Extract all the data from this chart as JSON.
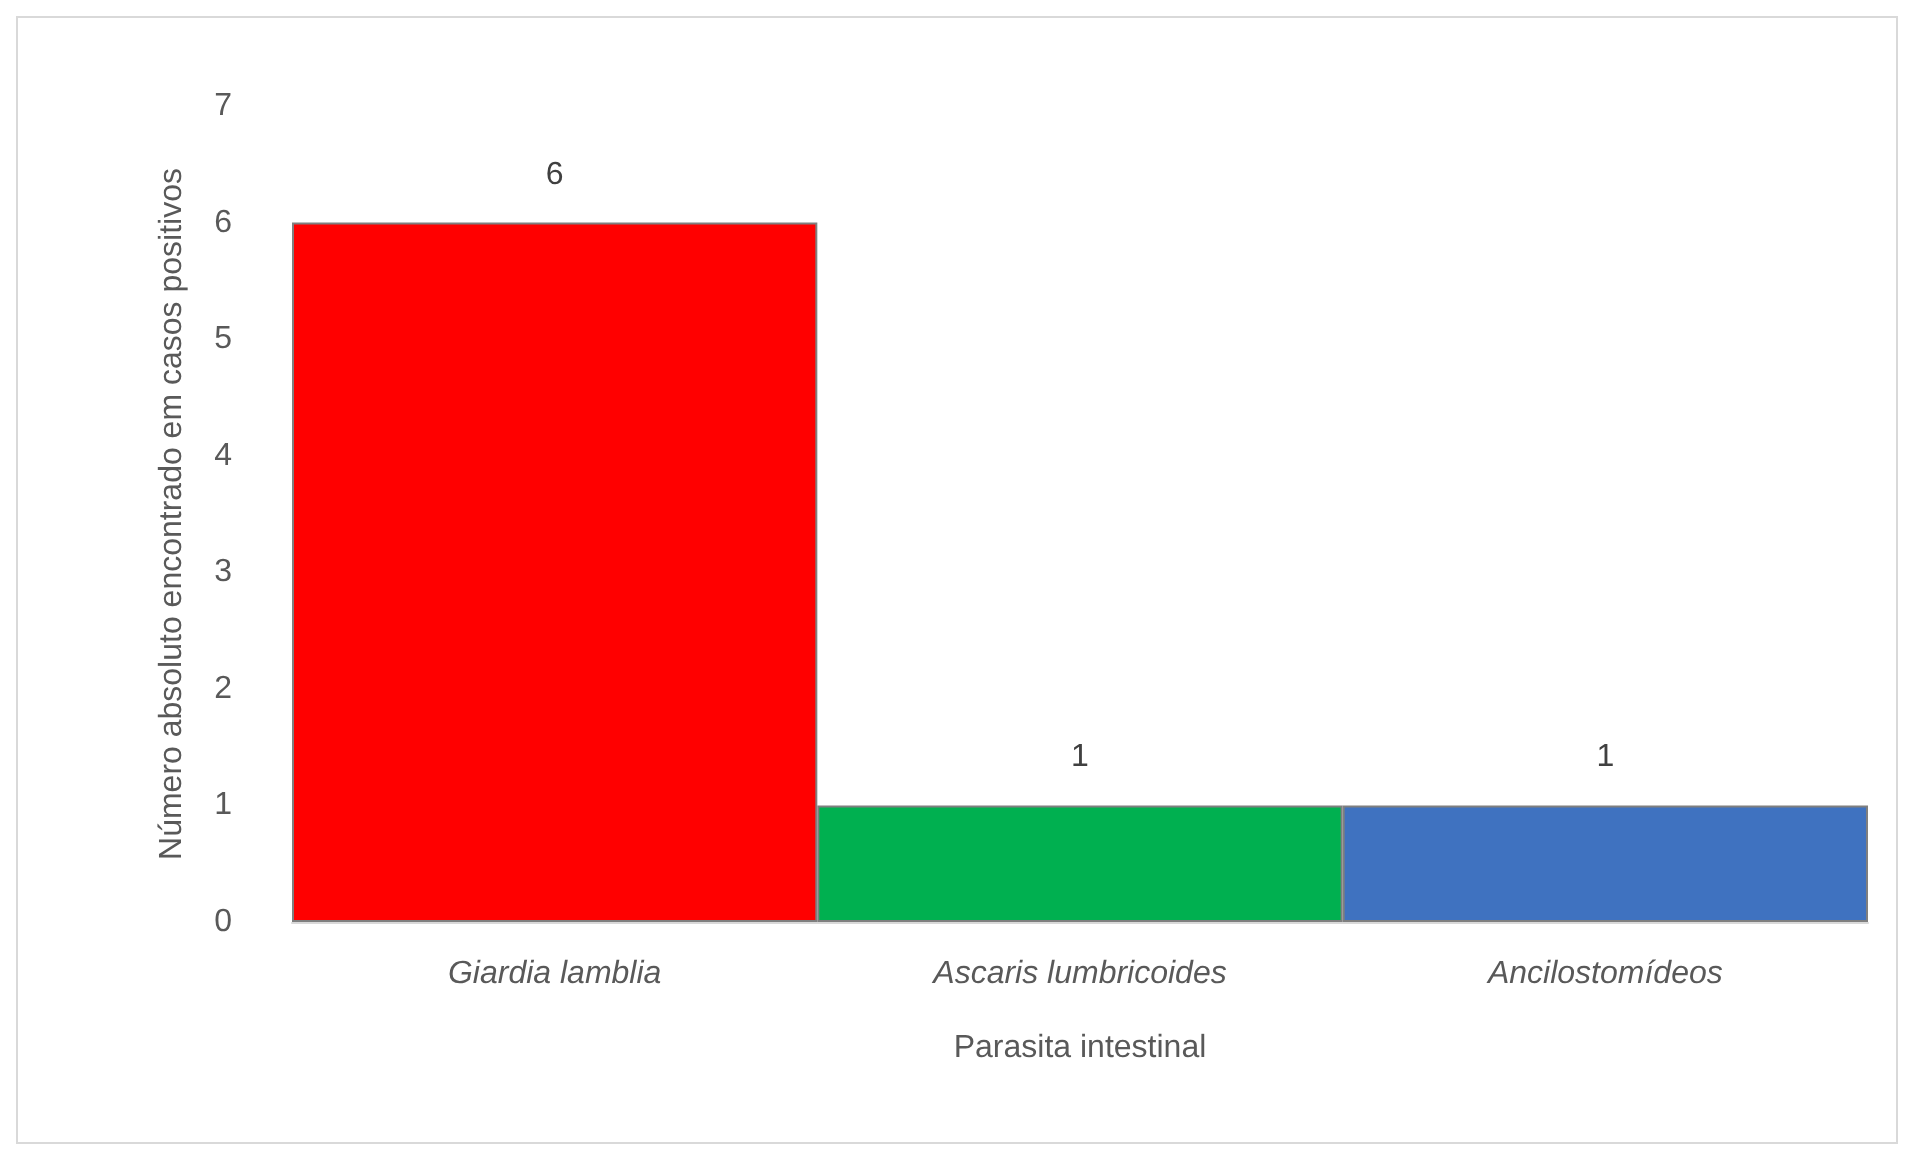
{
  "chart_data": {
    "type": "bar",
    "xlabel": "Parasita intestinal",
    "ylabel": "Número absoluto encontrado em casos positivos",
    "categories": [
      "Giardia lamblia",
      "Ascaris lumbricoides",
      "Ancilostomídeos"
    ],
    "values": [
      6,
      1,
      1
    ],
    "colors": [
      "#ff0000",
      "#00b050",
      "#3f72c0"
    ],
    "ylim": [
      0,
      7
    ],
    "yticks": [
      0,
      1,
      2,
      3,
      4,
      5,
      6,
      7
    ],
    "grid": false,
    "data_labels": true
  }
}
